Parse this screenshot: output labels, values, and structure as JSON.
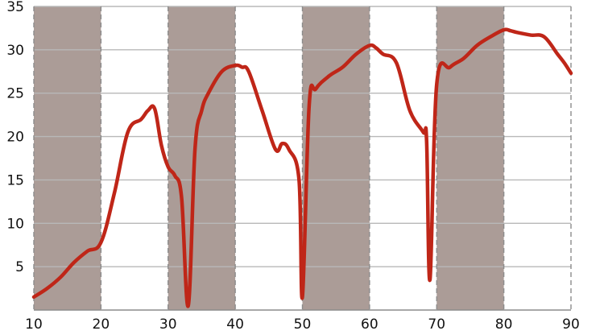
{
  "chart_data": {
    "type": "line",
    "xlim": [
      10,
      90
    ],
    "ylim": [
      0,
      35
    ],
    "x_ticks": [
      "10",
      "20",
      "30",
      "40",
      "50",
      "60",
      "70",
      "80",
      "90"
    ],
    "y_ticks": [
      "5",
      "10",
      "15",
      "20",
      "25",
      "30",
      "35"
    ],
    "grid": true,
    "shaded_x_bands": [
      [
        10,
        20
      ],
      [
        30,
        40
      ],
      [
        50,
        60
      ],
      [
        70,
        80
      ]
    ],
    "band_color": "#ab9c97",
    "line_color": "#bf2618",
    "grid_color": "#b8b8b8",
    "series": [
      {
        "x": [
          10,
          12,
          14,
          16,
          18,
          20,
          22,
          24,
          26,
          27,
          28,
          29,
          30,
          31,
          32,
          33,
          34,
          35,
          36,
          38,
          40,
          41,
          42,
          44,
          46,
          47,
          48,
          49.5,
          50,
          51,
          52,
          54,
          56,
          58,
          60,
          61,
          62,
          64,
          66,
          68,
          68.5,
          69,
          70,
          72,
          74,
          76,
          78,
          80,
          81,
          82,
          84,
          86,
          88,
          89,
          90
        ],
        "y": [
          1.5,
          2.5,
          3.8,
          5.5,
          6.8,
          7.8,
          13.5,
          20.5,
          22,
          23,
          23.2,
          19,
          16.5,
          15.5,
          13,
          0.5,
          18.5,
          23,
          25,
          27.5,
          28.2,
          28,
          27.5,
          23,
          18.5,
          19.2,
          18.5,
          15,
          1.5,
          23.5,
          25.5,
          27,
          28,
          29.5,
          30.5,
          30.2,
          29.5,
          28.5,
          23,
          20.5,
          19.5,
          3.5,
          26,
          28,
          29,
          30.5,
          31.5,
          32.3,
          32.2,
          32,
          31.7,
          31.5,
          29.5,
          28.5,
          27.3
        ]
      }
    ]
  }
}
